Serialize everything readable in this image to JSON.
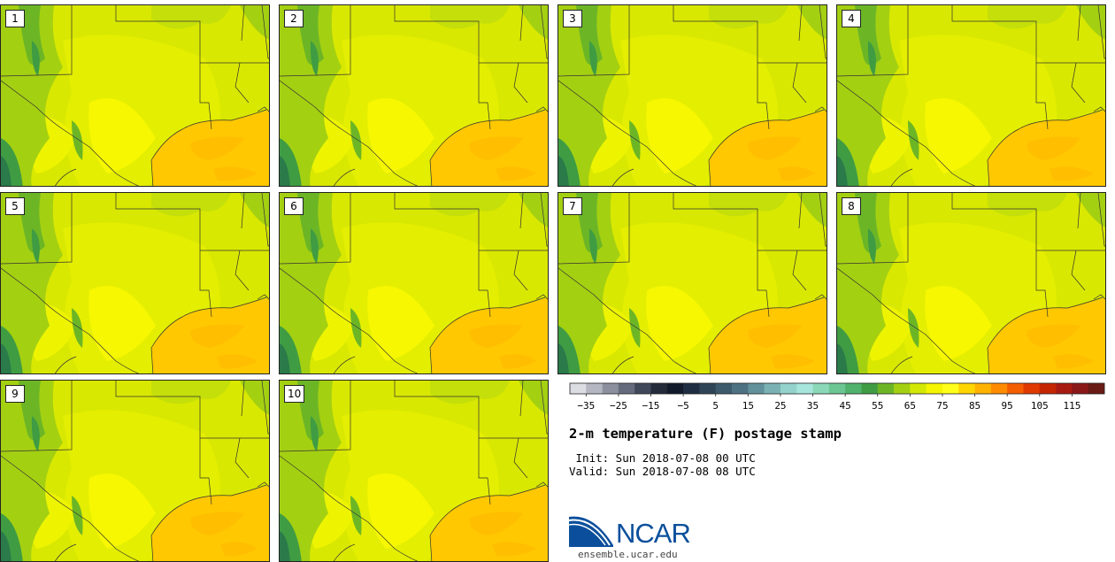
{
  "panels": [
    {
      "label": "1"
    },
    {
      "label": "2"
    },
    {
      "label": "3"
    },
    {
      "label": "4"
    },
    {
      "label": "5"
    },
    {
      "label": "6"
    },
    {
      "label": "7"
    },
    {
      "label": "8"
    },
    {
      "label": "9"
    },
    {
      "label": "10"
    }
  ],
  "colorbar": {
    "colors": [
      "#dcdde3",
      "#b4b7c1",
      "#8c909e",
      "#656b7c",
      "#404758",
      "#232b3a",
      "#111a2a",
      "#1e2d42",
      "#2f4457",
      "#3d5a6c",
      "#4d7282",
      "#62919b",
      "#7ab2b4",
      "#94d2cc",
      "#a6e5dc",
      "#8ad8b7",
      "#6cc693",
      "#50b26c",
      "#3f9c43",
      "#6cb626",
      "#a4d012",
      "#d4e805",
      "#f5f500",
      "#ffff1a",
      "#ffd500",
      "#ffb300",
      "#ff8c00",
      "#f45e00",
      "#e03a00",
      "#c52500",
      "#a81a10",
      "#8a1818",
      "#6a1a14"
    ],
    "ticks": [
      "−35",
      "−25",
      "−15",
      "−5",
      "5",
      "15",
      "25",
      "35",
      "45",
      "55",
      "65",
      "75",
      "85",
      "95",
      "105",
      "115"
    ]
  },
  "title": "2-m temperature (F) postage stamp",
  "init": " Init: Sun 2018-07-08 00 UTC",
  "valid": "Valid: Sun 2018-07-08 08 UTC",
  "logo": {
    "text": "NCAR",
    "color": "#0b4f9c"
  },
  "website": "ensemble.ucar.edu"
}
